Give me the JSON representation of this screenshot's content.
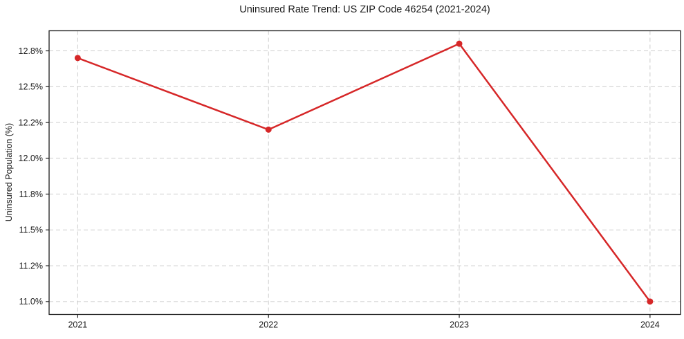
{
  "chart_data": {
    "type": "line",
    "title": "Uninsured Rate Trend: US ZIP Code 46254 (2021-2024)",
    "xlabel": "",
    "ylabel": "Uninsured Population (%)",
    "categories": [
      "2021",
      "2022",
      "2023",
      "2024"
    ],
    "x": [
      2021,
      2022,
      2023,
      2024
    ],
    "values": [
      12.7,
      12.2,
      12.8,
      11.0
    ],
    "unit": "%",
    "xlim": [
      2020.85,
      2024.16
    ],
    "ylim": [
      10.91,
      12.89
    ],
    "y_ticks": [
      11.0,
      11.25,
      11.5,
      11.75,
      12.0,
      12.25,
      12.5,
      12.75
    ],
    "y_tick_labels": [
      "11.0%",
      "11.2%",
      "11.5%",
      "11.8%",
      "12.0%",
      "12.2%",
      "12.5%",
      "12.8%"
    ],
    "x_tick_labels": [
      "2021",
      "2022",
      "2023",
      "2024"
    ],
    "grid": true,
    "grid_style": "dashed",
    "legend": "none",
    "line_color": "#d62728",
    "marker": "circle",
    "marker_size": 4.5,
    "line_width": 2.5,
    "grid_color": "#cccccc",
    "axis_color": "#1a1a1a",
    "text_color": "#1a1a1a",
    "background": "#ffffff"
  }
}
